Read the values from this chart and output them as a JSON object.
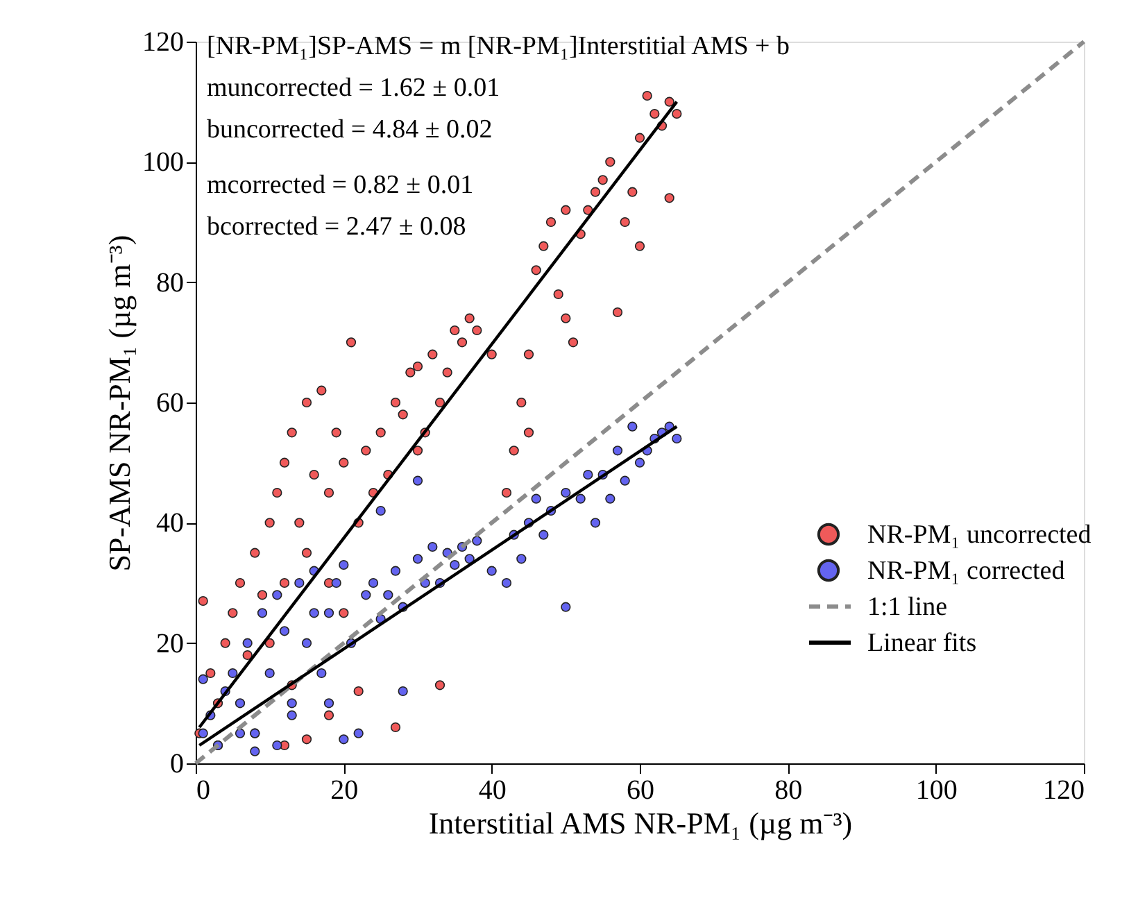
{
  "chart_data": {
    "type": "scatter",
    "xlabel": "Interstitial AMS NR-PM₁ (µg m⁻³)",
    "ylabel": "SP-AMS NR-PM₁ (µg m⁻³)",
    "xlim": [
      0,
      120
    ],
    "ylim": [
      0,
      120
    ],
    "xticks": [
      0,
      20,
      40,
      60,
      80,
      100,
      120
    ],
    "yticks": [
      0,
      20,
      40,
      60,
      80,
      100,
      120
    ],
    "grid": false,
    "legend": "right",
    "marker": "circle",
    "annotations": [
      "[NR-PM₁]SP-AMS = m [NR-PM₁]Interstitial AMS + b",
      "muncorrected = 1.62 ± 0.01",
      "buncorrected = 4.84 ± 0.02",
      "mcorrected = 0.82 ± 0.01",
      "bcorrected = 2.47 ± 0.08"
    ],
    "series": [
      {
        "name": "NR-PM₁ uncorrected",
        "color": "#f05a5a",
        "x": [
          1,
          2,
          3,
          4,
          5,
          6,
          7,
          8,
          9,
          10,
          10,
          11,
          12,
          12,
          13,
          14,
          15,
          15,
          16,
          17,
          18,
          18,
          19,
          20,
          20,
          21,
          22,
          23,
          24,
          25,
          26,
          27,
          28,
          29,
          30,
          30,
          31,
          32,
          33,
          34,
          35,
          36,
          37,
          38,
          40,
          42,
          43,
          44,
          45,
          45,
          46,
          47,
          48,
          49,
          50,
          50,
          51,
          52,
          53,
          54,
          55,
          56,
          57,
          58,
          59,
          60,
          60,
          61,
          62,
          63,
          64,
          64,
          65,
          13,
          22,
          15,
          27,
          33,
          8,
          3,
          0.5,
          12,
          18
        ],
        "values": [
          27,
          15,
          10,
          20,
          25,
          30,
          18,
          35,
          28,
          40,
          20,
          45,
          50,
          30,
          55,
          40,
          60,
          35,
          48,
          62,
          45,
          30,
          55,
          25,
          50,
          70,
          40,
          52,
          45,
          55,
          48,
          60,
          58,
          65,
          52,
          66,
          55,
          68,
          60,
          65,
          72,
          70,
          74,
          72,
          68,
          45,
          52,
          60,
          68,
          55,
          82,
          86,
          90,
          78,
          74,
          92,
          70,
          88,
          92,
          95,
          97,
          100,
          75,
          90,
          95,
          104,
          86,
          111,
          108,
          106,
          110,
          94,
          108,
          13,
          12,
          4,
          6,
          13,
          5,
          3,
          5,
          3,
          8
        ]
      },
      {
        "name": "NR-PM₁ corrected",
        "color": "#6464f0",
        "x": [
          1,
          1,
          2,
          3,
          4,
          5,
          6,
          7,
          8,
          9,
          10,
          11,
          12,
          13,
          14,
          15,
          16,
          17,
          18,
          19,
          20,
          21,
          22,
          23,
          24,
          25,
          26,
          27,
          28,
          30,
          31,
          32,
          33,
          34,
          35,
          36,
          37,
          38,
          40,
          42,
          43,
          44,
          45,
          46,
          47,
          48,
          50,
          50,
          52,
          53,
          54,
          55,
          56,
          57,
          58,
          59,
          60,
          61,
          62,
          63,
          64,
          65,
          18,
          20,
          8,
          13,
          25,
          30,
          28,
          11,
          6,
          16
        ],
        "values": [
          5,
          14,
          8,
          3,
          12,
          15,
          10,
          20,
          5,
          25,
          15,
          28,
          22,
          10,
          30,
          20,
          32,
          15,
          25,
          30,
          33,
          20,
          5,
          28,
          30,
          24,
          28,
          32,
          26,
          34,
          30,
          36,
          30,
          35,
          33,
          36,
          34,
          37,
          32,
          30,
          38,
          34,
          40,
          44,
          38,
          42,
          45,
          26,
          44,
          48,
          40,
          48,
          44,
          52,
          47,
          56,
          50,
          52,
          54,
          55,
          56,
          54,
          10,
          4,
          2,
          8,
          42,
          47,
          12,
          3,
          5,
          25
        ]
      },
      {
        "name": "1:1 line",
        "type": "line",
        "marker": "none",
        "line_style": "dashed",
        "color": "#8c8c8c",
        "x": [
          0,
          120
        ],
        "values": [
          0,
          120
        ]
      },
      {
        "name": "Linear fits",
        "type": "line",
        "marker": "none",
        "line_style": "solid",
        "color": "#000000",
        "x": [
          0.5,
          65
        ],
        "values": [
          6,
          110
        ]
      },
      {
        "type": "line",
        "marker": "none",
        "line_style": "solid",
        "color": "#000000",
        "x": [
          0.5,
          65
        ],
        "values": [
          3,
          56
        ]
      }
    ]
  }
}
